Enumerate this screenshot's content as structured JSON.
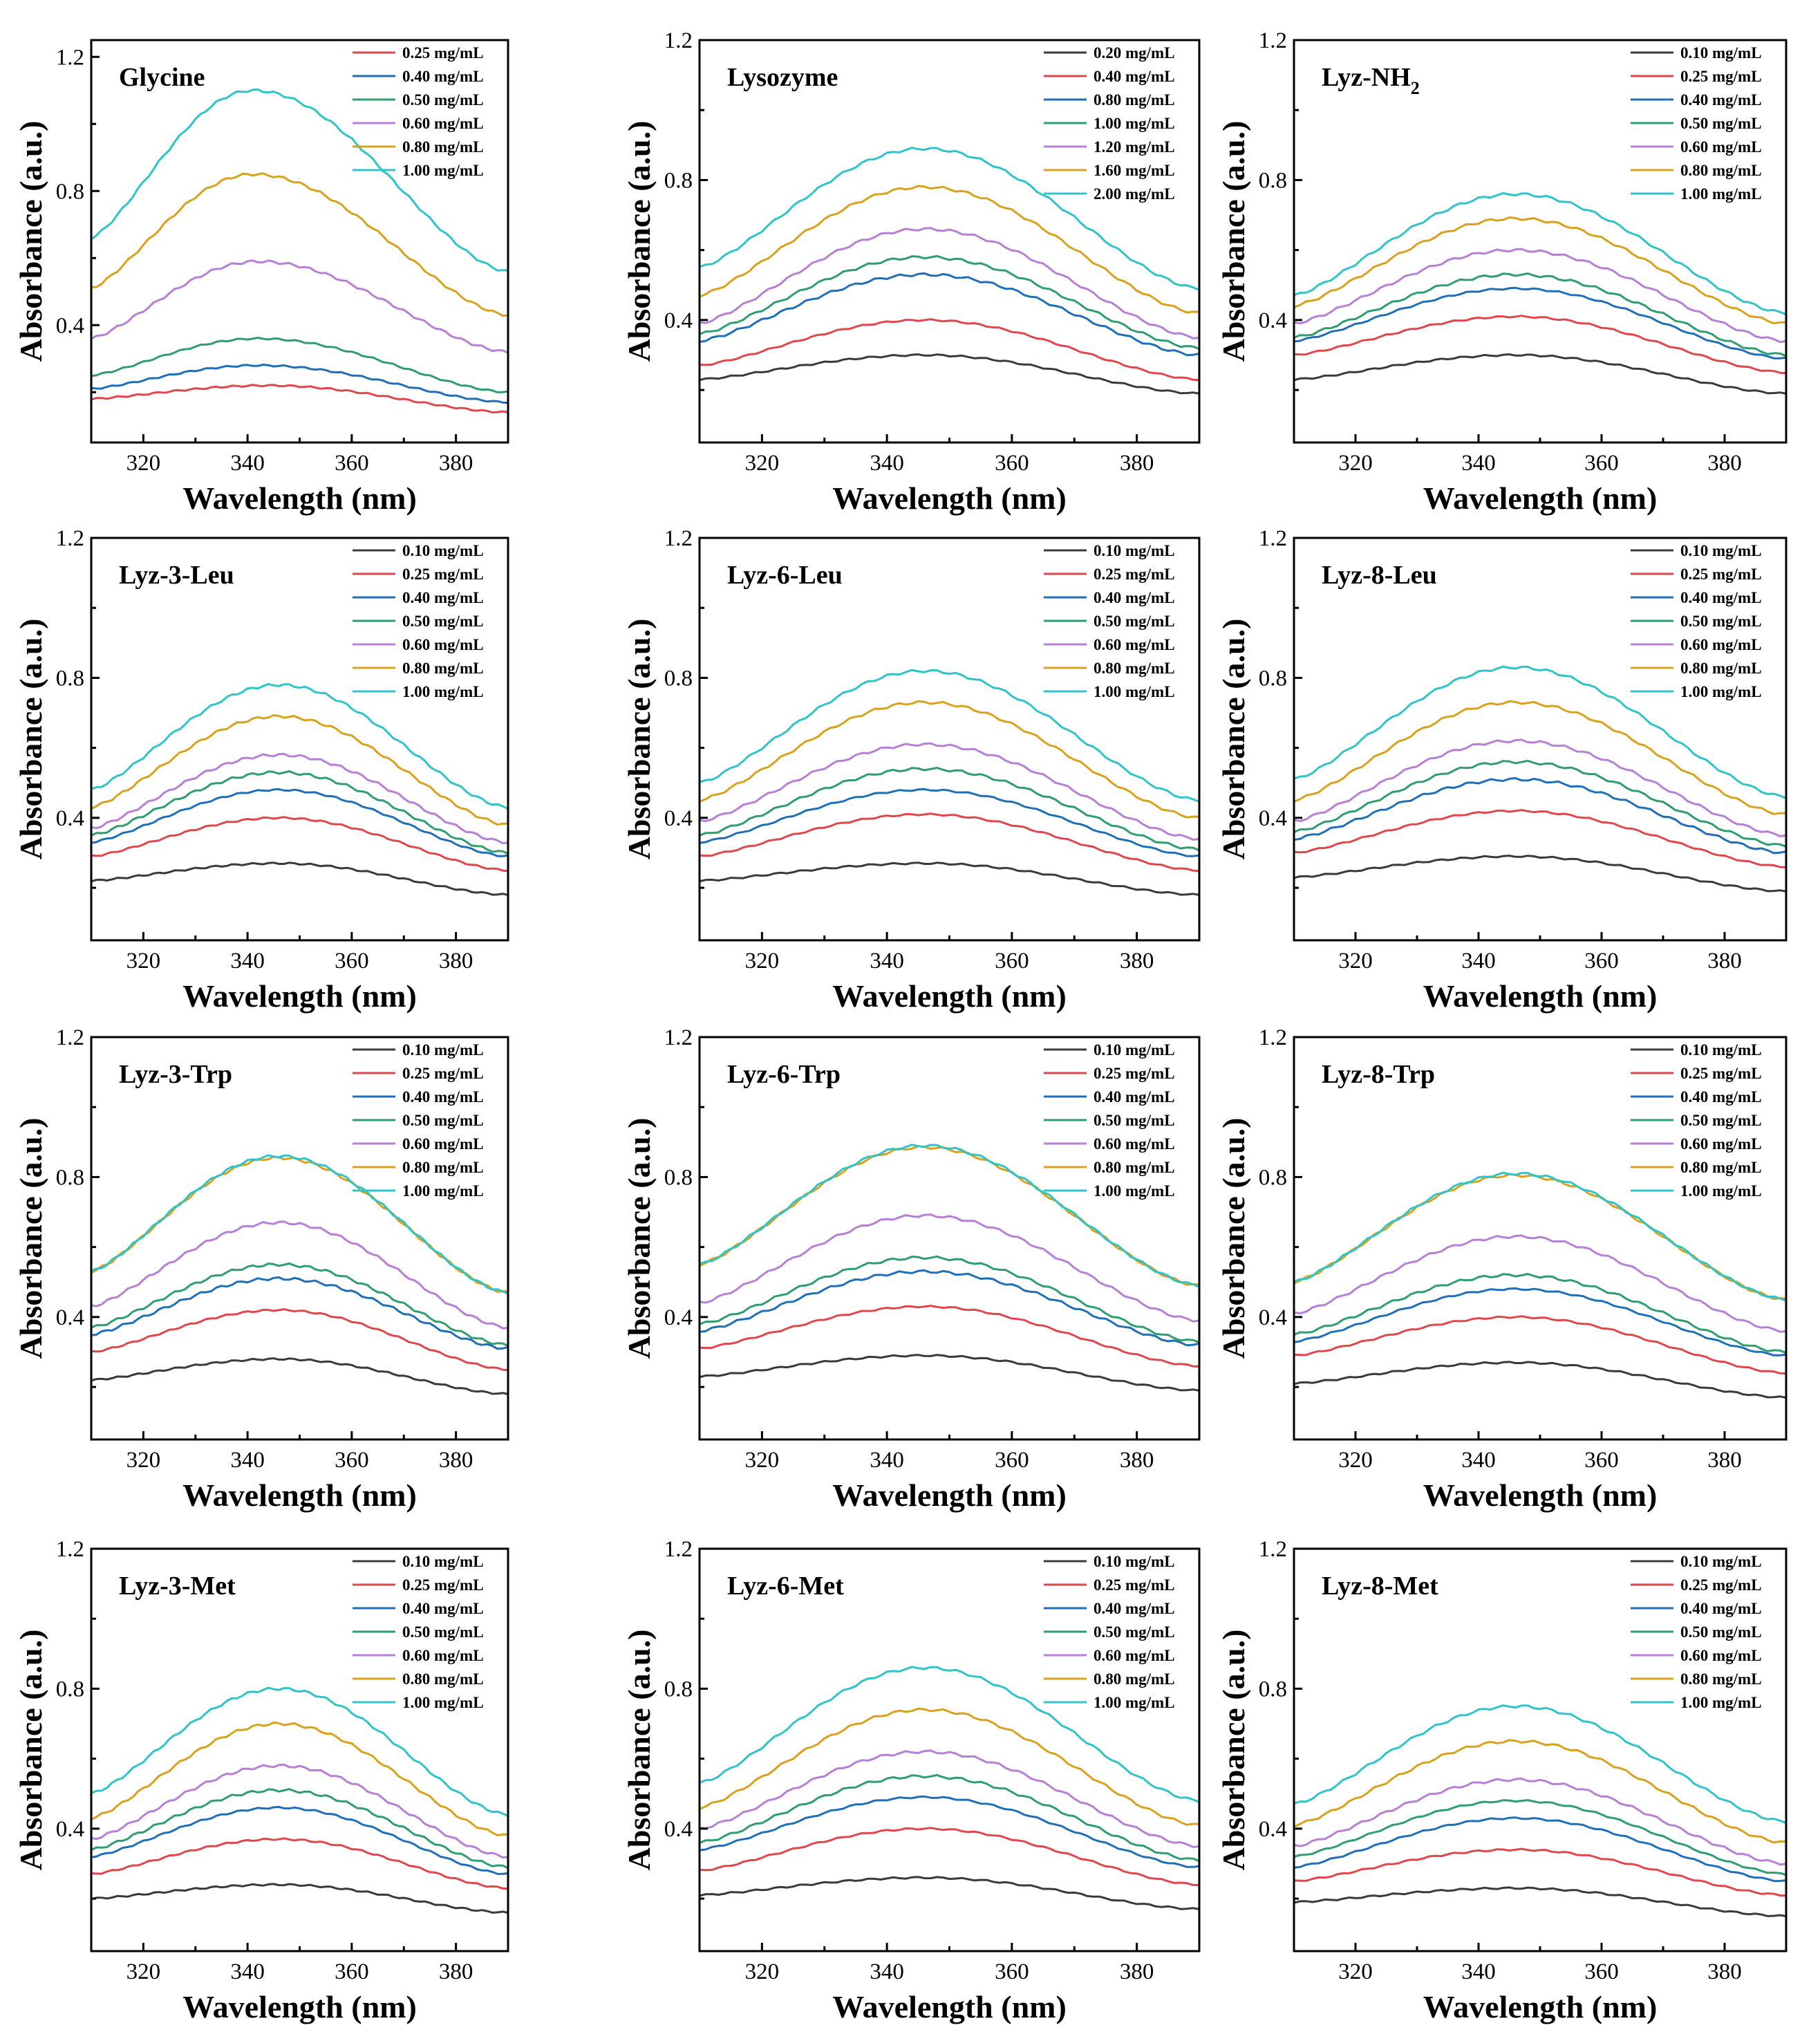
{
  "figure": {
    "xlabel": "Wavelength (nm)",
    "ylabel": "Absorbance (a.u.)"
  },
  "colors": {
    "black": "#3a3a3a",
    "red": "#e0474c",
    "blue": "#1f6fb8",
    "green": "#2e9e6e",
    "purple": "#b77fd6",
    "orange": "#d9a11c",
    "cyan": "#2ec4c9"
  },
  "chart_data": [
    {
      "type": "line",
      "title": "Glycine",
      "xlabel": "Wavelength (nm)",
      "ylabel": "Absorbance (a.u.)",
      "xlim": [
        310,
        390
      ],
      "ylim": [
        0.05,
        1.25
      ],
      "xticks": [
        320,
        340,
        360,
        380
      ],
      "yticks": [
        0.4,
        0.8,
        1.2
      ],
      "series": [
        {
          "name": "0.25 mg/mL",
          "color": "red",
          "start": 0.18,
          "peak": 0.22,
          "end": 0.14,
          "peak_x": 344
        },
        {
          "name": "0.40 mg/mL",
          "color": "blue",
          "start": 0.21,
          "peak": 0.28,
          "end": 0.17,
          "peak_x": 342
        },
        {
          "name": "0.50 mg/mL",
          "color": "green",
          "start": 0.25,
          "peak": 0.36,
          "end": 0.2,
          "peak_x": 342
        },
        {
          "name": "0.60 mg/mL",
          "color": "purple",
          "start": 0.36,
          "peak": 0.59,
          "end": 0.32,
          "peak_x": 342
        },
        {
          "name": "0.80 mg/mL",
          "color": "orange",
          "start": 0.51,
          "peak": 0.85,
          "end": 0.43,
          "peak_x": 341
        },
        {
          "name": "1.00 mg/mL",
          "color": "cyan",
          "start": 0.66,
          "peak": 1.1,
          "end": 0.56,
          "peak_x": 341
        }
      ]
    },
    {
      "type": "line",
      "title": "Lysozyme",
      "xlabel": "Wavelength (nm)",
      "ylabel": "Absorbance (a.u.)",
      "xlim": [
        310,
        390
      ],
      "ylim": [
        0.05,
        1.2
      ],
      "xticks": [
        320,
        340,
        360,
        380
      ],
      "yticks": [
        0.4,
        0.8,
        1.2
      ],
      "series": [
        {
          "name": "0.20 mg/mL",
          "color": "black",
          "start": 0.23,
          "peak": 0.3,
          "end": 0.19,
          "peak_x": 346
        },
        {
          "name": "0.40 mg/mL",
          "color": "red",
          "start": 0.27,
          "peak": 0.4,
          "end": 0.23,
          "peak_x": 346
        },
        {
          "name": "0.80 mg/mL",
          "color": "blue",
          "start": 0.34,
          "peak": 0.53,
          "end": 0.3,
          "peak_x": 346
        },
        {
          "name": "1.00 mg/mL",
          "color": "green",
          "start": 0.36,
          "peak": 0.58,
          "end": 0.32,
          "peak_x": 346
        },
        {
          "name": "1.20 mg/mL",
          "color": "purple",
          "start": 0.39,
          "peak": 0.66,
          "end": 0.35,
          "peak_x": 346
        },
        {
          "name": "1.60 mg/mL",
          "color": "orange",
          "start": 0.47,
          "peak": 0.78,
          "end": 0.42,
          "peak_x": 346
        },
        {
          "name": "2.00 mg/mL",
          "color": "cyan",
          "start": 0.55,
          "peak": 0.89,
          "end": 0.49,
          "peak_x": 346
        }
      ]
    },
    {
      "type": "line",
      "title": "Lyz-NH",
      "title_sub": "2",
      "xlabel": "Wavelength (nm)",
      "ylabel": "Absorbance (a.u.)",
      "xlim": [
        310,
        390
      ],
      "ylim": [
        0.05,
        1.2
      ],
      "xticks": [
        320,
        340,
        360,
        380
      ],
      "yticks": [
        0.4,
        0.8,
        1.2
      ],
      "series": [
        {
          "name": "0.10 mg/mL",
          "color": "black",
          "start": 0.23,
          "peak": 0.3,
          "end": 0.19,
          "peak_x": 346
        },
        {
          "name": "0.25 mg/mL",
          "color": "red",
          "start": 0.3,
          "peak": 0.41,
          "end": 0.25,
          "peak_x": 346
        },
        {
          "name": "0.40 mg/mL",
          "color": "blue",
          "start": 0.34,
          "peak": 0.49,
          "end": 0.29,
          "peak_x": 346
        },
        {
          "name": "0.50 mg/mL",
          "color": "green",
          "start": 0.35,
          "peak": 0.53,
          "end": 0.3,
          "peak_x": 346
        },
        {
          "name": "0.60 mg/mL",
          "color": "purple",
          "start": 0.39,
          "peak": 0.6,
          "end": 0.34,
          "peak_x": 346
        },
        {
          "name": "0.80 mg/mL",
          "color": "orange",
          "start": 0.44,
          "peak": 0.69,
          "end": 0.39,
          "peak_x": 346
        },
        {
          "name": "1.00 mg/mL",
          "color": "cyan",
          "start": 0.47,
          "peak": 0.76,
          "end": 0.42,
          "peak_x": 346
        }
      ]
    },
    {
      "type": "line",
      "title": "Lyz-3-Leu",
      "xlabel": "Wavelength (nm)",
      "ylabel": "Absorbance (a.u.)",
      "xlim": [
        310,
        390
      ],
      "ylim": [
        0.05,
        1.2
      ],
      "xticks": [
        320,
        340,
        360,
        380
      ],
      "yticks": [
        0.4,
        0.8,
        1.2
      ],
      "series": [
        {
          "name": "0.10 mg/mL",
          "color": "black",
          "start": 0.22,
          "peak": 0.27,
          "end": 0.18,
          "peak_x": 346
        },
        {
          "name": "0.25 mg/mL",
          "color": "red",
          "start": 0.29,
          "peak": 0.4,
          "end": 0.25,
          "peak_x": 346
        },
        {
          "name": "0.40 mg/mL",
          "color": "blue",
          "start": 0.33,
          "peak": 0.48,
          "end": 0.29,
          "peak_x": 346
        },
        {
          "name": "0.50 mg/mL",
          "color": "green",
          "start": 0.35,
          "peak": 0.53,
          "end": 0.3,
          "peak_x": 346
        },
        {
          "name": "0.60 mg/mL",
          "color": "purple",
          "start": 0.37,
          "peak": 0.58,
          "end": 0.33,
          "peak_x": 346
        },
        {
          "name": "0.80 mg/mL",
          "color": "orange",
          "start": 0.43,
          "peak": 0.69,
          "end": 0.38,
          "peak_x": 346
        },
        {
          "name": "1.00 mg/mL",
          "color": "cyan",
          "start": 0.48,
          "peak": 0.78,
          "end": 0.43,
          "peak_x": 346
        }
      ]
    },
    {
      "type": "line",
      "title": "Lyz-6-Leu",
      "xlabel": "Wavelength (nm)",
      "ylabel": "Absorbance (a.u.)",
      "xlim": [
        310,
        390
      ],
      "ylim": [
        0.05,
        1.2
      ],
      "xticks": [
        320,
        340,
        360,
        380
      ],
      "yticks": [
        0.4,
        0.8,
        1.2
      ],
      "series": [
        {
          "name": "0.10 mg/mL",
          "color": "black",
          "start": 0.22,
          "peak": 0.27,
          "end": 0.18,
          "peak_x": 346
        },
        {
          "name": "0.25 mg/mL",
          "color": "red",
          "start": 0.29,
          "peak": 0.41,
          "end": 0.25,
          "peak_x": 346
        },
        {
          "name": "0.40 mg/mL",
          "color": "blue",
          "start": 0.33,
          "peak": 0.48,
          "end": 0.29,
          "peak_x": 346
        },
        {
          "name": "0.50 mg/mL",
          "color": "green",
          "start": 0.35,
          "peak": 0.54,
          "end": 0.31,
          "peak_x": 346
        },
        {
          "name": "0.60 mg/mL",
          "color": "purple",
          "start": 0.39,
          "peak": 0.61,
          "end": 0.34,
          "peak_x": 346
        },
        {
          "name": "0.80 mg/mL",
          "color": "orange",
          "start": 0.45,
          "peak": 0.73,
          "end": 0.4,
          "peak_x": 346
        },
        {
          "name": "1.00 mg/mL",
          "color": "cyan",
          "start": 0.5,
          "peak": 0.82,
          "end": 0.45,
          "peak_x": 346
        }
      ]
    },
    {
      "type": "line",
      "title": "Lyz-8-Leu",
      "xlabel": "Wavelength (nm)",
      "ylabel": "Absorbance (a.u.)",
      "xlim": [
        310,
        390
      ],
      "ylim": [
        0.05,
        1.2
      ],
      "xticks": [
        320,
        340,
        360,
        380
      ],
      "yticks": [
        0.4,
        0.8,
        1.2
      ],
      "series": [
        {
          "name": "0.10 mg/mL",
          "color": "black",
          "start": 0.23,
          "peak": 0.29,
          "end": 0.19,
          "peak_x": 346
        },
        {
          "name": "0.25 mg/mL",
          "color": "red",
          "start": 0.3,
          "peak": 0.42,
          "end": 0.26,
          "peak_x": 346
        },
        {
          "name": "0.40 mg/mL",
          "color": "blue",
          "start": 0.34,
          "peak": 0.51,
          "end": 0.3,
          "peak_x": 346
        },
        {
          "name": "0.50 mg/mL",
          "color": "green",
          "start": 0.36,
          "peak": 0.56,
          "end": 0.32,
          "peak_x": 346
        },
        {
          "name": "0.60 mg/mL",
          "color": "purple",
          "start": 0.39,
          "peak": 0.62,
          "end": 0.35,
          "peak_x": 346
        },
        {
          "name": "0.80 mg/mL",
          "color": "orange",
          "start": 0.45,
          "peak": 0.73,
          "end": 0.41,
          "peak_x": 346
        },
        {
          "name": "1.00 mg/mL",
          "color": "cyan",
          "start": 0.51,
          "peak": 0.83,
          "end": 0.46,
          "peak_x": 346
        }
      ]
    },
    {
      "type": "line",
      "title": "Lyz-3-Trp",
      "xlabel": "Wavelength (nm)",
      "ylabel": "Absorbance (a.u.)",
      "xlim": [
        310,
        390
      ],
      "ylim": [
        0.05,
        1.2
      ],
      "xticks": [
        320,
        340,
        360,
        380
      ],
      "yticks": [
        0.4,
        0.8,
        1.2
      ],
      "series": [
        {
          "name": "0.10 mg/mL",
          "color": "black",
          "start": 0.22,
          "peak": 0.28,
          "end": 0.18,
          "peak_x": 346
        },
        {
          "name": "0.25 mg/mL",
          "color": "red",
          "start": 0.3,
          "peak": 0.42,
          "end": 0.25,
          "peak_x": 346
        },
        {
          "name": "0.40 mg/mL",
          "color": "blue",
          "start": 0.35,
          "peak": 0.51,
          "end": 0.31,
          "peak_x": 346
        },
        {
          "name": "0.50 mg/mL",
          "color": "green",
          "start": 0.37,
          "peak": 0.55,
          "end": 0.32,
          "peak_x": 346
        },
        {
          "name": "0.60 mg/mL",
          "color": "purple",
          "start": 0.43,
          "peak": 0.67,
          "end": 0.37,
          "peak_x": 346
        },
        {
          "name": "0.80 mg/mL",
          "color": "orange",
          "start": 0.53,
          "peak": 0.855,
          "end": 0.47,
          "peak_x": 346
        },
        {
          "name": "1.00 mg/mL",
          "color": "cyan",
          "start": 0.53,
          "peak": 0.86,
          "end": 0.47,
          "peak_x": 346
        }
      ]
    },
    {
      "type": "line",
      "title": "Lyz-6-Trp",
      "xlabel": "Wavelength (nm)",
      "ylabel": "Absorbance (a.u.)",
      "xlim": [
        310,
        390
      ],
      "ylim": [
        0.05,
        1.2
      ],
      "xticks": [
        320,
        340,
        360,
        380
      ],
      "yticks": [
        0.4,
        0.8,
        1.2
      ],
      "series": [
        {
          "name": "0.10 mg/mL",
          "color": "black",
          "start": 0.23,
          "peak": 0.29,
          "end": 0.19,
          "peak_x": 346
        },
        {
          "name": "0.25 mg/mL",
          "color": "red",
          "start": 0.31,
          "peak": 0.43,
          "end": 0.26,
          "peak_x": 346
        },
        {
          "name": "0.40 mg/mL",
          "color": "blue",
          "start": 0.36,
          "peak": 0.53,
          "end": 0.32,
          "peak_x": 346
        },
        {
          "name": "0.50 mg/mL",
          "color": "green",
          "start": 0.38,
          "peak": 0.57,
          "end": 0.33,
          "peak_x": 346
        },
        {
          "name": "0.60 mg/mL",
          "color": "purple",
          "start": 0.44,
          "peak": 0.69,
          "end": 0.39,
          "peak_x": 346
        },
        {
          "name": "0.80 mg/mL",
          "color": "orange",
          "start": 0.55,
          "peak": 0.885,
          "end": 0.49,
          "peak_x": 346
        },
        {
          "name": "1.00 mg/mL",
          "color": "cyan",
          "start": 0.55,
          "peak": 0.89,
          "end": 0.49,
          "peak_x": 346
        }
      ]
    },
    {
      "type": "line",
      "title": "Lyz-8-Trp",
      "xlabel": "Wavelength (nm)",
      "ylabel": "Absorbance (a.u.)",
      "xlim": [
        310,
        390
      ],
      "ylim": [
        0.05,
        1.2
      ],
      "xticks": [
        320,
        340,
        360,
        380
      ],
      "yticks": [
        0.4,
        0.8,
        1.2
      ],
      "series": [
        {
          "name": "0.10 mg/mL",
          "color": "black",
          "start": 0.21,
          "peak": 0.27,
          "end": 0.17,
          "peak_x": 346
        },
        {
          "name": "0.25 mg/mL",
          "color": "red",
          "start": 0.29,
          "peak": 0.4,
          "end": 0.24,
          "peak_x": 346
        },
        {
          "name": "0.40 mg/mL",
          "color": "blue",
          "start": 0.33,
          "peak": 0.48,
          "end": 0.29,
          "peak_x": 346
        },
        {
          "name": "0.50 mg/mL",
          "color": "green",
          "start": 0.35,
          "peak": 0.52,
          "end": 0.3,
          "peak_x": 346
        },
        {
          "name": "0.60 mg/mL",
          "color": "purple",
          "start": 0.41,
          "peak": 0.63,
          "end": 0.36,
          "peak_x": 346
        },
        {
          "name": "0.80 mg/mL",
          "color": "orange",
          "start": 0.5,
          "peak": 0.805,
          "end": 0.45,
          "peak_x": 346
        },
        {
          "name": "1.00 mg/mL",
          "color": "cyan",
          "start": 0.5,
          "peak": 0.81,
          "end": 0.45,
          "peak_x": 346
        }
      ]
    },
    {
      "type": "line",
      "title": "Lyz-3-Met",
      "xlabel": "Wavelength (nm)",
      "ylabel": "Absorbance (a.u.)",
      "xlim": [
        310,
        390
      ],
      "ylim": [
        0.05,
        1.2
      ],
      "xticks": [
        320,
        340,
        360,
        380
      ],
      "yticks": [
        0.4,
        0.8,
        1.2
      ],
      "series": [
        {
          "name": "0.10 mg/mL",
          "color": "black",
          "start": 0.2,
          "peak": 0.24,
          "end": 0.16,
          "peak_x": 346
        },
        {
          "name": "0.25 mg/mL",
          "color": "red",
          "start": 0.27,
          "peak": 0.37,
          "end": 0.23,
          "peak_x": 346
        },
        {
          "name": "0.40 mg/mL",
          "color": "blue",
          "start": 0.32,
          "peak": 0.46,
          "end": 0.27,
          "peak_x": 346
        },
        {
          "name": "0.50 mg/mL",
          "color": "green",
          "start": 0.34,
          "peak": 0.51,
          "end": 0.29,
          "peak_x": 346
        },
        {
          "name": "0.60 mg/mL",
          "color": "purple",
          "start": 0.37,
          "peak": 0.58,
          "end": 0.32,
          "peak_x": 346
        },
        {
          "name": "0.80 mg/mL",
          "color": "orange",
          "start": 0.43,
          "peak": 0.7,
          "end": 0.38,
          "peak_x": 346
        },
        {
          "name": "1.00 mg/mL",
          "color": "cyan",
          "start": 0.5,
          "peak": 0.8,
          "end": 0.44,
          "peak_x": 346
        }
      ]
    },
    {
      "type": "line",
      "title": "Lyz-6-Met",
      "xlabel": "Wavelength (nm)",
      "ylabel": "Absorbance (a.u.)",
      "xlim": [
        310,
        390
      ],
      "ylim": [
        0.05,
        1.2
      ],
      "xticks": [
        320,
        340,
        360,
        380
      ],
      "yticks": [
        0.4,
        0.8,
        1.2
      ],
      "series": [
        {
          "name": "0.10 mg/mL",
          "color": "black",
          "start": 0.21,
          "peak": 0.26,
          "end": 0.17,
          "peak_x": 346
        },
        {
          "name": "0.25 mg/mL",
          "color": "red",
          "start": 0.28,
          "peak": 0.4,
          "end": 0.24,
          "peak_x": 346
        },
        {
          "name": "0.40 mg/mL",
          "color": "blue",
          "start": 0.34,
          "peak": 0.49,
          "end": 0.29,
          "peak_x": 346
        },
        {
          "name": "0.50 mg/mL",
          "color": "green",
          "start": 0.36,
          "peak": 0.55,
          "end": 0.31,
          "peak_x": 346
        },
        {
          "name": "0.60 mg/mL",
          "color": "purple",
          "start": 0.4,
          "peak": 0.62,
          "end": 0.35,
          "peak_x": 346
        },
        {
          "name": "0.80 mg/mL",
          "color": "orange",
          "start": 0.46,
          "peak": 0.74,
          "end": 0.41,
          "peak_x": 346
        },
        {
          "name": "1.00 mg/mL",
          "color": "cyan",
          "start": 0.53,
          "peak": 0.86,
          "end": 0.48,
          "peak_x": 346
        }
      ]
    },
    {
      "type": "line",
      "title": "Lyz-8-Met",
      "xlabel": "Wavelength (nm)",
      "ylabel": "Absorbance (a.u.)",
      "xlim": [
        310,
        390
      ],
      "ylim": [
        0.05,
        1.2
      ],
      "xticks": [
        320,
        340,
        360,
        380
      ],
      "yticks": [
        0.4,
        0.8,
        1.2
      ],
      "series": [
        {
          "name": "0.10 mg/mL",
          "color": "black",
          "start": 0.19,
          "peak": 0.23,
          "end": 0.15,
          "peak_x": 346
        },
        {
          "name": "0.25 mg/mL",
          "color": "red",
          "start": 0.25,
          "peak": 0.34,
          "end": 0.21,
          "peak_x": 346
        },
        {
          "name": "0.40 mg/mL",
          "color": "blue",
          "start": 0.29,
          "peak": 0.43,
          "end": 0.25,
          "peak_x": 346
        },
        {
          "name": "0.50 mg/mL",
          "color": "green",
          "start": 0.32,
          "peak": 0.48,
          "end": 0.27,
          "peak_x": 346
        },
        {
          "name": "0.60 mg/mL",
          "color": "purple",
          "start": 0.35,
          "peak": 0.54,
          "end": 0.3,
          "peak_x": 346
        },
        {
          "name": "0.80 mg/mL",
          "color": "orange",
          "start": 0.41,
          "peak": 0.65,
          "end": 0.36,
          "peak_x": 346
        },
        {
          "name": "1.00 mg/mL",
          "color": "cyan",
          "start": 0.47,
          "peak": 0.75,
          "end": 0.42,
          "peak_x": 346
        }
      ]
    }
  ]
}
